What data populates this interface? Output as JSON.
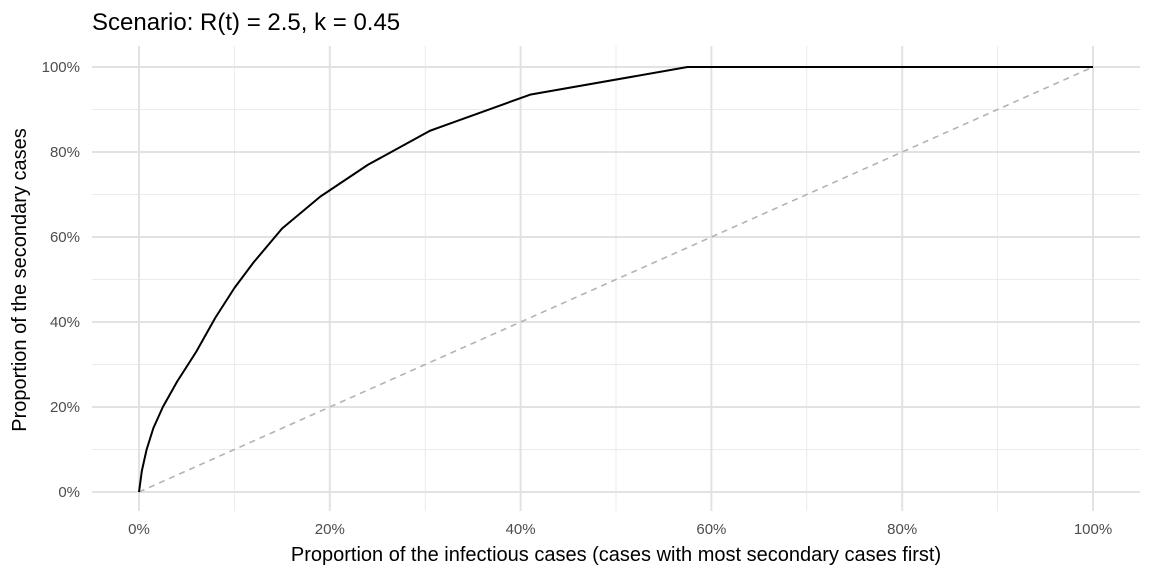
{
  "chart_data": {
    "type": "line",
    "title": "Scenario: R(t) = 2.5, k = 0.45",
    "xlabel": "Proportion of the infectious cases (cases with most secondary cases first)",
    "ylabel": "Proportion of the secondary cases",
    "xlim": [
      0,
      1
    ],
    "ylim": [
      0,
      1
    ],
    "grid": true,
    "x_ticks": [
      {
        "value": 0,
        "label": "0%"
      },
      {
        "value": 0.2,
        "label": "20%"
      },
      {
        "value": 0.4,
        "label": "40%"
      },
      {
        "value": 0.6,
        "label": "60%"
      },
      {
        "value": 0.8,
        "label": "80%"
      },
      {
        "value": 1,
        "label": "100%"
      }
    ],
    "y_ticks": [
      {
        "value": 0,
        "label": "0%"
      },
      {
        "value": 0.2,
        "label": "20%"
      },
      {
        "value": 0.4,
        "label": "40%"
      },
      {
        "value": 0.6,
        "label": "60%"
      },
      {
        "value": 0.8,
        "label": "80%"
      },
      {
        "value": 1,
        "label": "100%"
      }
    ],
    "series": [
      {
        "style": "solid",
        "color": "#000000",
        "x": [
          0,
          0.003,
          0.008,
          0.015,
          0.025,
          0.04,
          0.06,
          0.08,
          0.1,
          0.12,
          0.15,
          0.19,
          0.24,
          0.305,
          0.41,
          0.575,
          1.0
        ],
        "y": [
          0,
          0.05,
          0.1,
          0.15,
          0.2,
          0.26,
          0.33,
          0.41,
          0.48,
          0.54,
          0.62,
          0.695,
          0.77,
          0.85,
          0.935,
          1.0,
          1.0
        ]
      },
      {
        "style": "dashed",
        "color": "#b3b3b3",
        "x": [
          0,
          1
        ],
        "y": [
          0,
          1
        ]
      }
    ]
  }
}
